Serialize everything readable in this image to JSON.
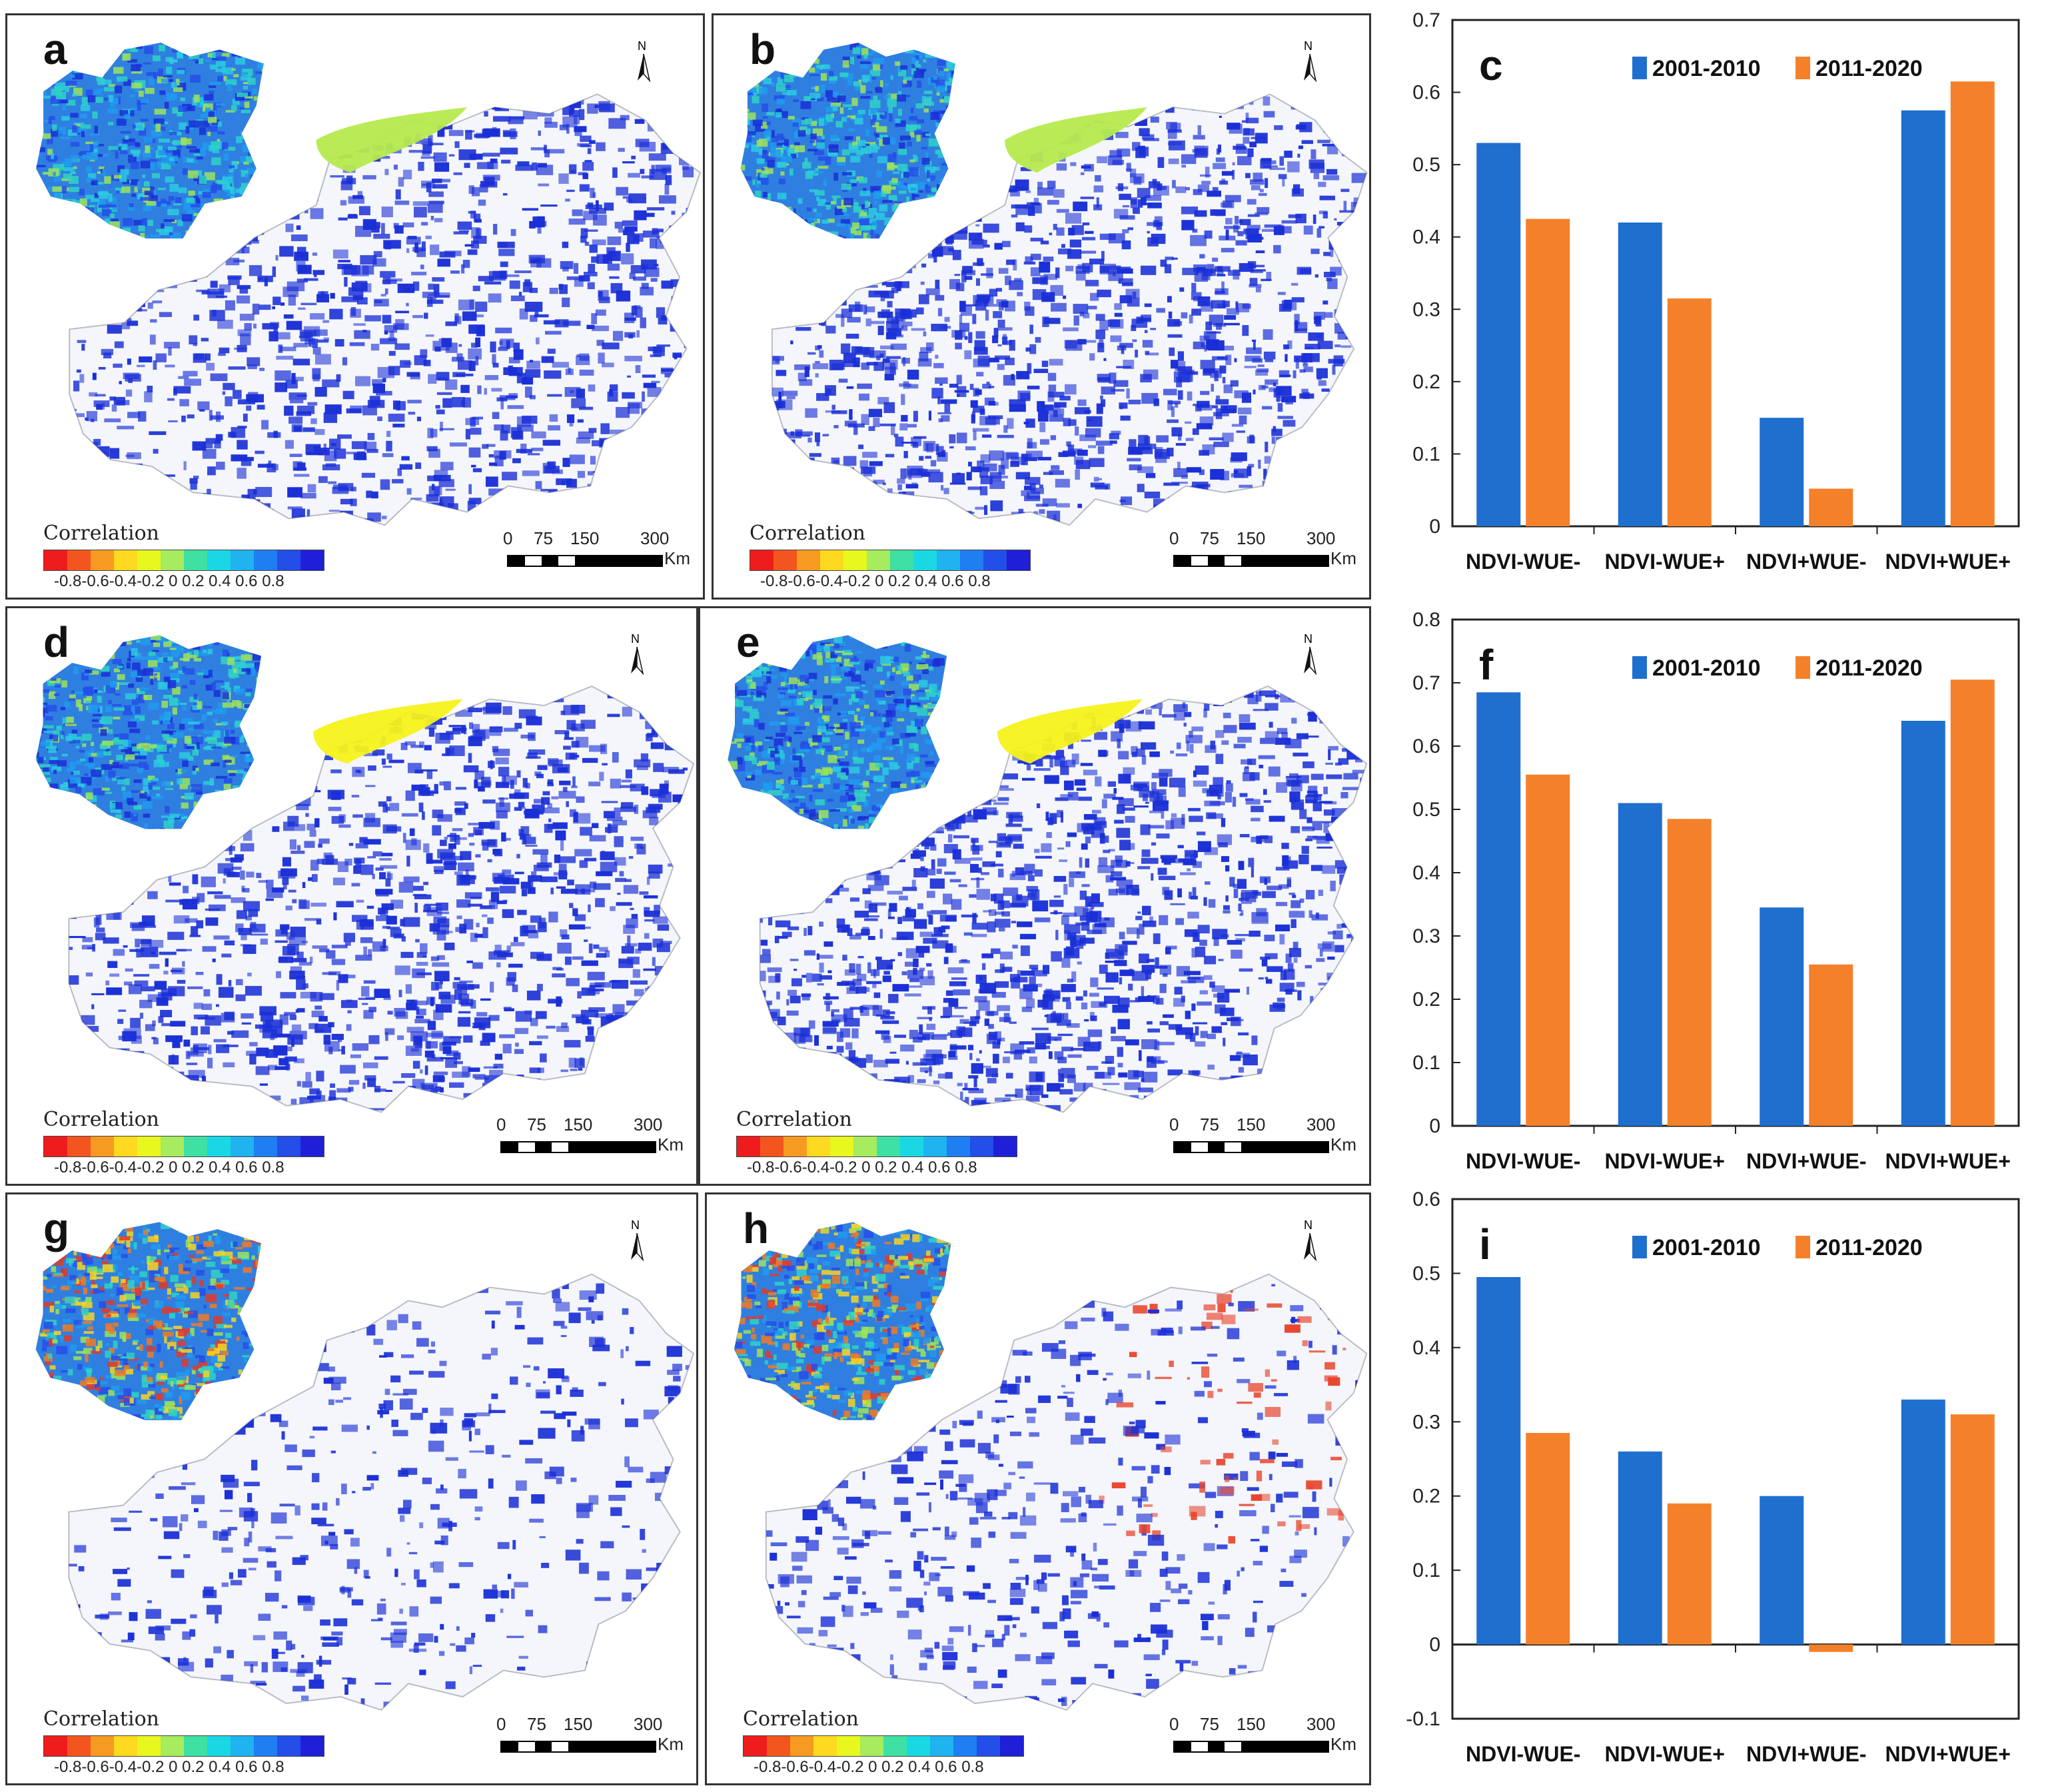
{
  "colors": {
    "series_2001_2010": "#1f6fcf",
    "series_2011_2020": "#f4812a",
    "map_blue": "#1a2fd6",
    "map_green": "#b6ea4e",
    "map_yellow": "#f5f21a",
    "map_red": "#e8452c",
    "colorbar": [
      "#ee1c1c",
      "#f2561e",
      "#f69a22",
      "#fdd91f",
      "#e8f71e",
      "#a7eb5e",
      "#3fe0a3",
      "#19d8e4",
      "#1fb3f0",
      "#1f7ef2",
      "#244ee8",
      "#1f1fd8"
    ]
  },
  "maps": [
    {
      "label": "a",
      "north": "N",
      "legend_title": "Correlation",
      "legend_ticks": "-0.8-0.6-0.4-0.2   0  0.2  0.4  0.6  0.8",
      "scale": [
        "0",
        "75",
        "150",
        "300"
      ],
      "scale_unit": "Km"
    },
    {
      "label": "b",
      "north": "N",
      "legend_title": "Correlation",
      "legend_ticks": "-0.8-0.6-0.4-0.2   0  0.2  0.4  0.6  0.8",
      "scale": [
        "0",
        "75",
        "150",
        "300"
      ],
      "scale_unit": "Km"
    },
    {
      "label": "d",
      "north": "N",
      "legend_title": "Correlation",
      "legend_ticks": "-0.8-0.6-0.4-0.2   0  0.2  0.4  0.6  0.8",
      "scale": [
        "0",
        "75",
        "150",
        "300"
      ],
      "scale_unit": "Km"
    },
    {
      "label": "e",
      "north": "N",
      "legend_title": "Correlation",
      "legend_ticks": "-0.8-0.6-0.4-0.2   0  0.2  0.4  0.6  0.8",
      "scale": [
        "0",
        "75",
        "150",
        "300"
      ],
      "scale_unit": "Km"
    },
    {
      "label": "g",
      "north": "N",
      "legend_title": "Correlation",
      "legend_ticks": "-0.8-0.6-0.4-0.2   0  0.2  0.4  0.6  0.8",
      "scale": [
        "0",
        "75",
        "150",
        "300"
      ],
      "scale_unit": "Km"
    },
    {
      "label": "h",
      "north": "N",
      "legend_title": "Correlation",
      "legend_ticks": "-0.8-0.6-0.4-0.2   0  0.2  0.4  0.6  0.8",
      "scale": [
        "0",
        "75",
        "150",
        "300"
      ],
      "scale_unit": "Km"
    }
  ],
  "chart_data": [
    {
      "label": "c",
      "type": "bar",
      "categories": [
        "NDVI-WUE-",
        "NDVI-WUE+",
        "NDVI+WUE-",
        "NDVI+WUE+"
      ],
      "series": [
        {
          "name": "2001-2010",
          "values": [
            0.53,
            0.42,
            0.15,
            0.575
          ]
        },
        {
          "name": "2011-2020",
          "values": [
            0.425,
            0.315,
            0.052,
            0.615
          ]
        }
      ],
      "ylim": [
        0,
        0.7
      ],
      "yticks": [
        "0",
        "0.1",
        "0.2",
        "0.3",
        "0.4",
        "0.5",
        "0.6",
        "0.7"
      ]
    },
    {
      "label": "f",
      "type": "bar",
      "categories": [
        "NDVI-WUE-",
        "NDVI-WUE+",
        "NDVI+WUE-",
        "NDVI+WUE+"
      ],
      "series": [
        {
          "name": "2001-2010",
          "values": [
            0.685,
            0.51,
            0.345,
            0.64
          ]
        },
        {
          "name": "2011-2020",
          "values": [
            0.555,
            0.485,
            0.255,
            0.705
          ]
        }
      ],
      "ylim": [
        0,
        0.8
      ],
      "yticks": [
        "0",
        "0.1",
        "0.2",
        "0.3",
        "0.4",
        "0.5",
        "0.6",
        "0.7",
        "0.8"
      ]
    },
    {
      "label": "i",
      "type": "bar",
      "categories": [
        "NDVI-WUE-",
        "NDVI-WUE+",
        "NDVI+WUE-",
        "NDVI+WUE+"
      ],
      "series": [
        {
          "name": "2001-2010",
          "values": [
            0.495,
            0.26,
            0.2,
            0.33
          ]
        },
        {
          "name": "2011-2020",
          "values": [
            0.285,
            0.19,
            -0.01,
            0.31
          ]
        }
      ],
      "ylim": [
        -0.1,
        0.6
      ],
      "yticks": [
        "-0.1",
        "0",
        "0.1",
        "0.2",
        "0.3",
        "0.4",
        "0.5",
        "0.6"
      ]
    }
  ]
}
